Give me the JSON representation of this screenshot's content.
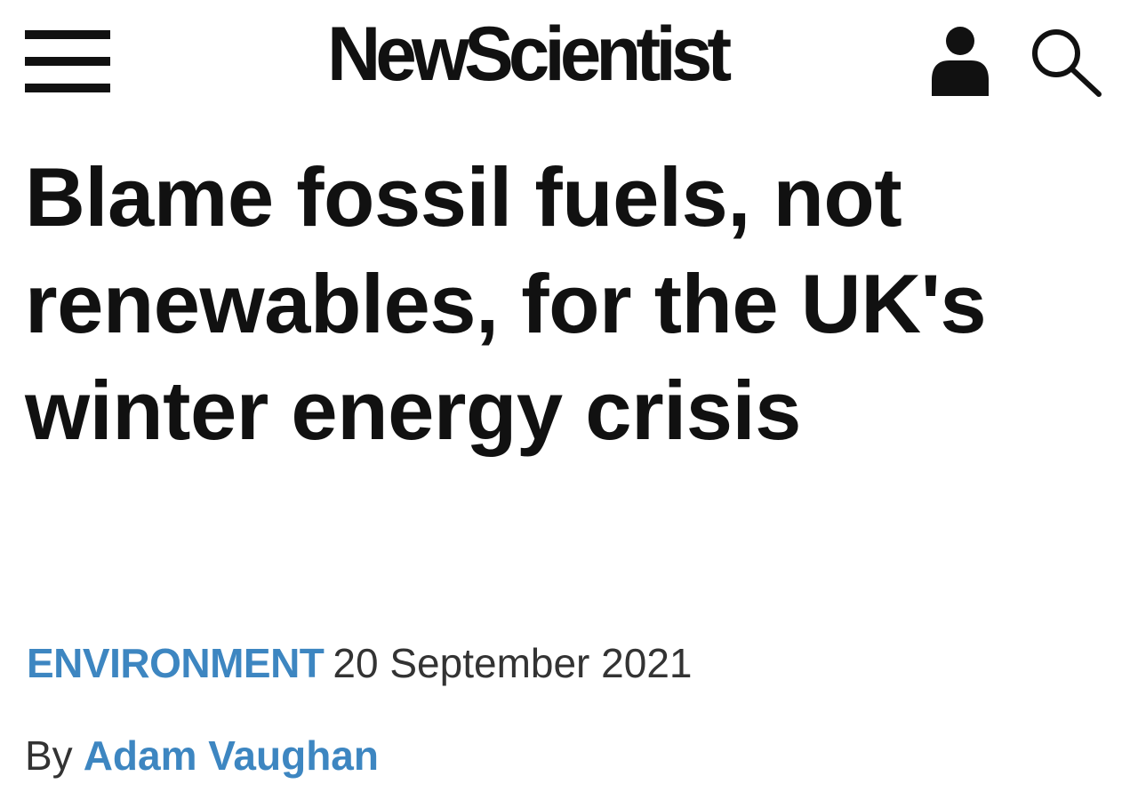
{
  "header": {
    "logo_text": "NewScientist",
    "menu_icon": "hamburger-menu-icon",
    "account_icon": "user-account-icon",
    "search_icon": "search-icon"
  },
  "article": {
    "headline": "Blame fossil fuels, not renewables, for the UK's winter energy crisis",
    "category": "ENVIRONMENT",
    "date": "20 September 2021",
    "byline_prefix": "By",
    "author": "Adam Vaughan"
  },
  "colors": {
    "text": "#111111",
    "secondary_text": "#333333",
    "link_accent": "#3d86c1",
    "background": "#ffffff"
  }
}
